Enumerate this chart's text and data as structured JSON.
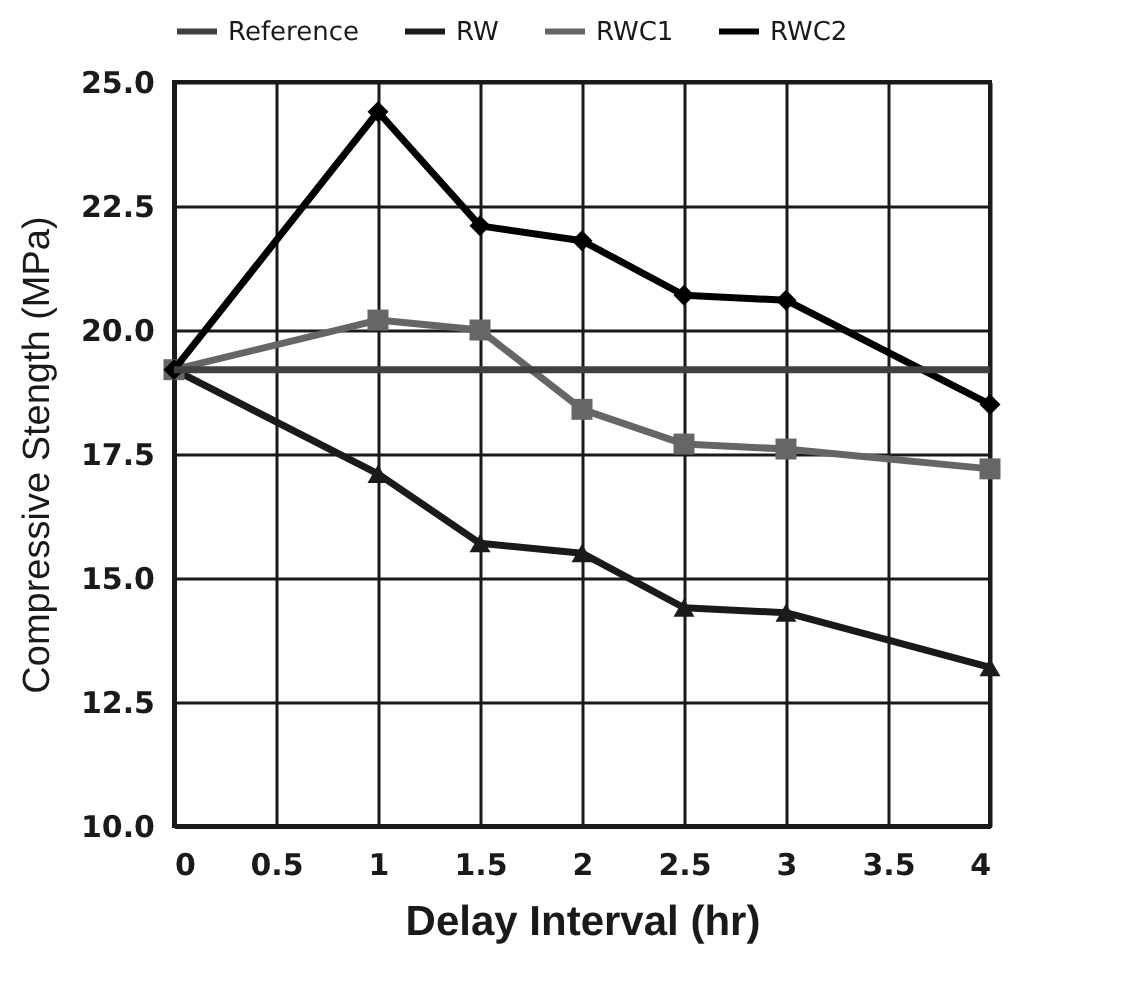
{
  "chart_data": {
    "type": "line",
    "xlabel": "Delay Interval (hr)",
    "ylabel": "Compressive Stength (MPa)",
    "x": [
      0,
      1,
      1.5,
      2,
      2.5,
      3,
      4
    ],
    "series": [
      {
        "name": "Reference",
        "color": "#404040",
        "marker": "none",
        "x": [
          0,
          4
        ],
        "values": [
          19.2,
          19.2
        ]
      },
      {
        "name": "RW",
        "color": "#1a1a1a",
        "marker": "triangle",
        "values": [
          19.2,
          17.1,
          15.7,
          15.5,
          14.4,
          14.3,
          13.2
        ]
      },
      {
        "name": "RWC1",
        "color": "#666666",
        "marker": "square",
        "values": [
          19.2,
          20.2,
          20.0,
          18.4,
          17.7,
          17.6,
          17.2
        ]
      },
      {
        "name": "RWC2",
        "color": "#000000",
        "marker": "diamond",
        "values": [
          19.2,
          24.4,
          22.1,
          21.8,
          20.7,
          20.6,
          18.5
        ]
      }
    ],
    "xlim": [
      0,
      4
    ],
    "xticks": [
      0,
      0.5,
      1,
      1.5,
      2,
      2.5,
      3,
      3.5,
      4
    ],
    "ylim": [
      10,
      25
    ],
    "yticks": [
      {
        "value": 10,
        "label": "10.0"
      },
      {
        "value": 12.5,
        "label": "12.5"
      },
      {
        "value": 15,
        "label": "15.0"
      },
      {
        "value": 17.5,
        "label": "17.5"
      },
      {
        "value": 20,
        "label": "20.0"
      },
      {
        "value": 22.5,
        "label": "22.5"
      },
      {
        "value": 25,
        "label": "25.0"
      }
    ],
    "grid": true,
    "legend": "top",
    "line_style": "solid"
  }
}
